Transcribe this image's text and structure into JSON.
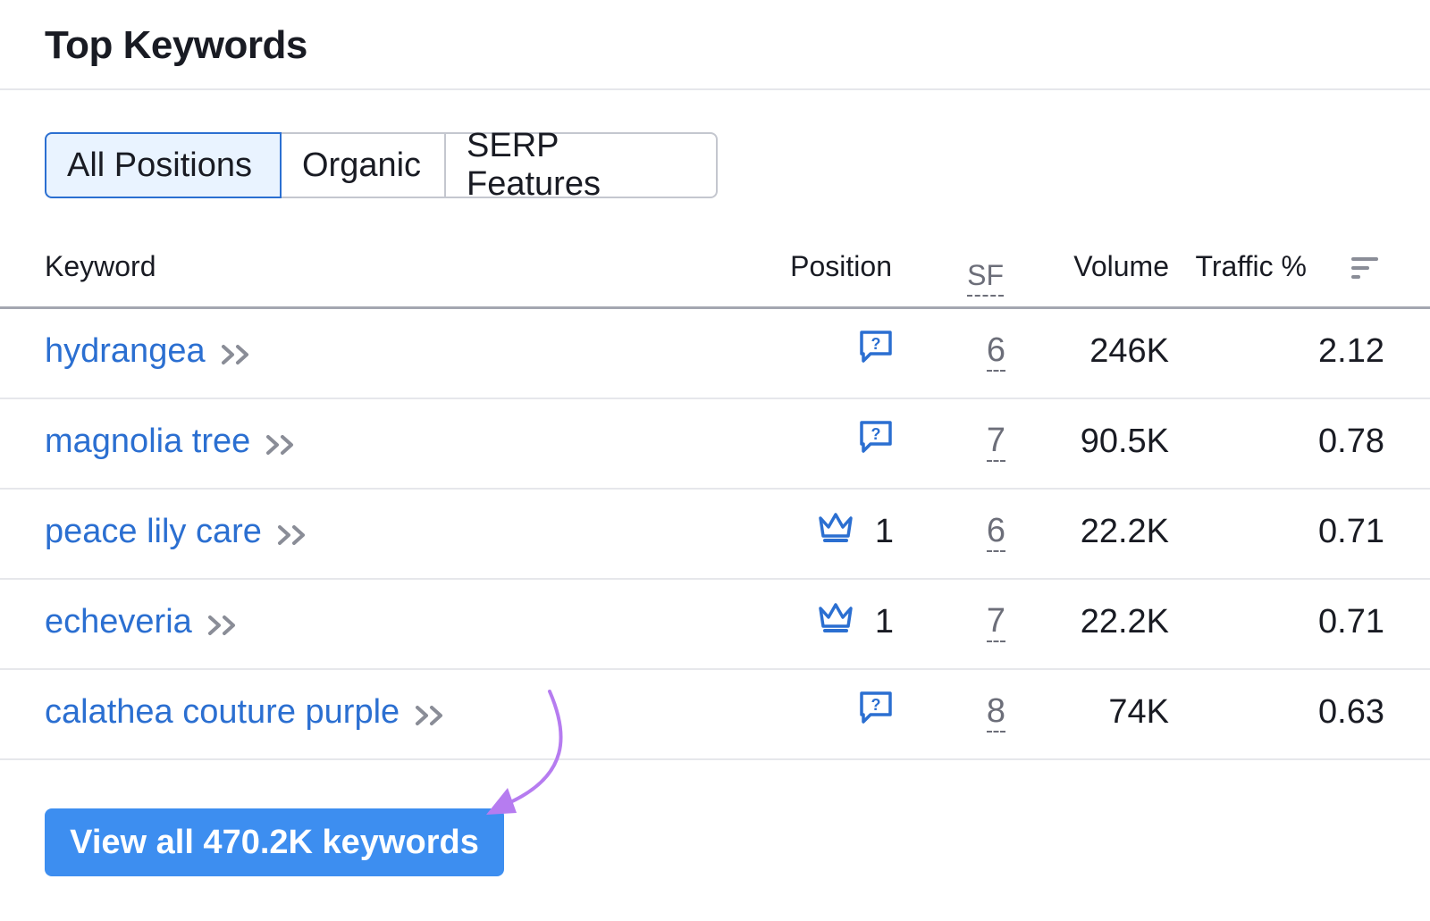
{
  "title": "Top Keywords",
  "tabs": [
    {
      "label": "All Positions",
      "active": true
    },
    {
      "label": "Organic",
      "active": false
    },
    {
      "label": "SERP Features",
      "active": false
    }
  ],
  "columns": {
    "keyword": "Keyword",
    "position": "Position",
    "sf": "SF",
    "volume": "Volume",
    "traffic": "Traffic %"
  },
  "rows": [
    {
      "keyword": "hydrangea",
      "position_icon": "faq-question-icon",
      "position": "",
      "sf": "6",
      "volume": "246K",
      "traffic": "2.12"
    },
    {
      "keyword": "magnolia tree",
      "position_icon": "faq-question-icon",
      "position": "",
      "sf": "7",
      "volume": "90.5K",
      "traffic": "0.78"
    },
    {
      "keyword": "peace lily care",
      "position_icon": "crown-icon",
      "position": "1",
      "sf": "6",
      "volume": "22.2K",
      "traffic": "0.71"
    },
    {
      "keyword": "echeveria",
      "position_icon": "crown-icon",
      "position": "1",
      "sf": "7",
      "volume": "22.2K",
      "traffic": "0.71"
    },
    {
      "keyword": "calathea couture purple",
      "position_icon": "faq-question-icon",
      "position": "",
      "sf": "8",
      "volume": "74K",
      "traffic": "0.63"
    }
  ],
  "cta": {
    "label": "View all 470.2K keywords"
  },
  "colors": {
    "link": "#2b6fd1",
    "button": "#3d8ef0",
    "active_tab_bg": "#e9f3ff",
    "annotation_arrow": "#b67cf0"
  }
}
